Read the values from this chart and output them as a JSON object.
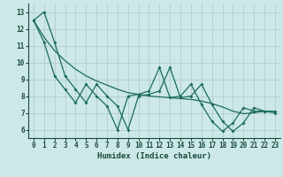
{
  "x": [
    0,
    1,
    2,
    3,
    4,
    5,
    6,
    7,
    8,
    9,
    10,
    11,
    12,
    13,
    14,
    15,
    16,
    17,
    18,
    19,
    20,
    21,
    22,
    23
  ],
  "line1": [
    12.5,
    13.0,
    11.2,
    9.2,
    8.4,
    7.6,
    8.7,
    8.0,
    7.4,
    6.0,
    8.0,
    8.1,
    8.3,
    9.7,
    7.9,
    8.0,
    8.7,
    7.5,
    6.5,
    5.9,
    6.4,
    7.3,
    7.1,
    7.1
  ],
  "line2": [
    12.5,
    11.2,
    9.2,
    8.4,
    7.6,
    8.7,
    8.0,
    7.4,
    6.0,
    8.0,
    8.1,
    8.3,
    9.7,
    7.9,
    8.0,
    8.7,
    7.5,
    6.5,
    5.9,
    6.4,
    7.3,
    7.1,
    7.1,
    7.0
  ],
  "trend": [
    12.5,
    11.5,
    10.7,
    10.1,
    9.6,
    9.2,
    8.9,
    8.65,
    8.4,
    8.2,
    8.1,
    8.0,
    7.95,
    7.9,
    7.85,
    7.8,
    7.7,
    7.55,
    7.35,
    7.1,
    6.95,
    7.0,
    7.1,
    7.1
  ],
  "background_color": "#cce8e8",
  "grid_color": "#b0c8c8",
  "line_color": "#1a6b5a",
  "xlabel": "Humidex (Indice chaleur)",
  "ylim": [
    5.5,
    13.5
  ],
  "xlim": [
    -0.5,
    23.5
  ],
  "yticks": [
    6,
    7,
    8,
    9,
    10,
    11,
    12,
    13
  ],
  "xticks": [
    0,
    1,
    2,
    3,
    4,
    5,
    6,
    7,
    8,
    9,
    10,
    11,
    12,
    13,
    14,
    15,
    16,
    17,
    18,
    19,
    20,
    21,
    22,
    23
  ]
}
